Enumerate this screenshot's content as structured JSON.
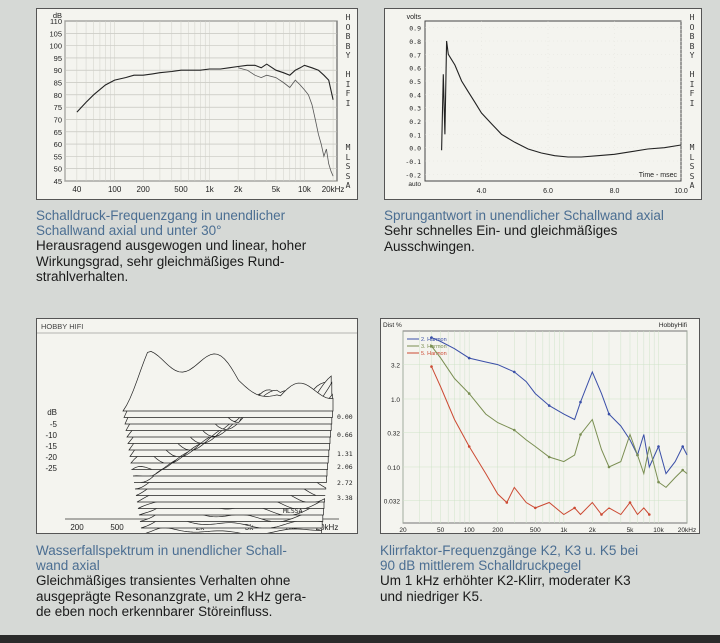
{
  "panels": [
    {
      "title": "Schalldruck-Frequenzgang in unendlicher\nSchallwand axial und unter 30°",
      "body": "Herausragend ausgewogen und linear, hoher\nWirkungsgrad, sehr gleichmäßiges Rund-\nstrahlverhalten.",
      "chart_data": {
        "type": "line",
        "y_unit": "dB",
        "y_ticks": [
          "110",
          "105",
          "100",
          "95",
          "90",
          "85",
          "80",
          "75",
          "70",
          "65",
          "60",
          "55",
          "50",
          "45"
        ],
        "x_ticks": [
          "40",
          "100",
          "200",
          "500",
          "1k",
          "2k",
          "5k",
          "10k",
          "20kHz"
        ],
        "vertical_label": [
          "H",
          "O",
          "B",
          "B",
          "Y",
          "",
          "H",
          "I",
          "F",
          "I"
        ],
        "vertical_label_bottom": [
          "M",
          "L",
          "S",
          "S",
          "A"
        ],
        "ylim": [
          45,
          110
        ],
        "series": [
          {
            "x": [
              40,
              50,
              60,
              80,
              100,
              130,
              160,
              200,
              250,
              300,
              400,
              500,
              600,
              800,
              1000,
              1300,
              1600,
              2000,
              2500,
              3000,
              3500,
              4000,
              5000,
              6000,
              7000,
              8000,
              9000,
              10000,
              12000,
              14000,
              16000,
              18000,
              20000
            ],
            "y": [
              73,
              77,
              80,
              84,
              86,
              87,
              88,
              88,
              88.5,
              89,
              89.5,
              90,
              90,
              90,
              90.5,
              90.5,
              91,
              91.5,
              92,
              92,
              91,
              92.5,
              90,
              89,
              88,
              90,
              91,
              92,
              91,
              90,
              88,
              86,
              78
            ]
          },
          {
            "x": [
              2000,
              2500,
              3000,
              3500,
              4000,
              5000,
              6000,
              7000,
              8000,
              9000,
              10000,
              11000,
              12000,
              13000,
              14000,
              15000,
              16000,
              17000,
              18000,
              19000,
              20000
            ],
            "y": [
              91,
              90,
              88,
              87,
              88,
              87,
              85,
              83,
              86,
              84,
              82,
              80,
              76,
              70,
              64,
              60,
              55,
              58,
              52,
              49,
              47
            ]
          }
        ]
      }
    },
    {
      "title": "Sprungantwort in unendlicher Schallwand axial",
      "body": "Sehr schnelles Ein- und gleichmäßiges\nAusschwingen.",
      "chart_data": {
        "type": "line",
        "y_unit": "volts",
        "y_ticks": [
          "0.9",
          "0.8",
          "0.7",
          "0.6",
          "0.5",
          "0.4",
          "0.3",
          "0.2",
          "0.1",
          "0.0",
          "-0.1",
          "-0.2"
        ],
        "y_bottom_label": "auto",
        "x_ticks": [
          "4.0",
          "6.0",
          "8.0",
          "10.0"
        ],
        "x_label": "Time - msec",
        "vertical_label": [
          "H",
          "O",
          "B",
          "B",
          "Y",
          "",
          "H",
          "I",
          "F",
          "I"
        ],
        "vertical_label_bottom": [
          "M",
          "L",
          "S",
          "S",
          "A"
        ],
        "xlim": [
          2.3,
          10.0
        ],
        "ylim": [
          -0.25,
          0.95
        ],
        "series": [
          {
            "x": [
              2.8,
              2.85,
              2.9,
              2.95,
              3.0,
              3.2,
              3.4,
              3.6,
              3.8,
              4.0,
              4.3,
              4.6,
              5.0,
              5.4,
              5.8,
              6.2,
              6.6,
              7.0,
              7.5,
              8.0,
              8.5,
              9.0,
              9.5,
              10.0
            ],
            "y": [
              -0.02,
              0.55,
              0.1,
              0.8,
              0.7,
              0.62,
              0.5,
              0.42,
              0.34,
              0.26,
              0.18,
              0.1,
              0.04,
              -0.01,
              -0.04,
              -0.06,
              -0.07,
              -0.07,
              -0.06,
              -0.05,
              -0.03,
              -0.01,
              0.0,
              0.02
            ]
          }
        ]
      }
    },
    {
      "title": "Wasserfallspektrum in unendlicher Schall-\nwand axial",
      "body": "Gleichmäßiges transientes Verhalten ohne\nausgeprägte Resonanzgrate, um 2 kHz gera-\nde eben noch erkennbarer Störeinfluss.",
      "chart_data": {
        "type": "area",
        "header": "HOBBY HIFI",
        "y_unit": "dB",
        "y_ticks": [
          "-5",
          "-10",
          "-15",
          "-20",
          "-25"
        ],
        "x_ticks": [
          "200",
          "500",
          "1k",
          "2k",
          "5k",
          "10k",
          "20kHz"
        ],
        "time_ticks": [
          "0.00",
          "0.66",
          "1.31",
          "2.06",
          "2.72",
          "3.38 msec"
        ],
        "brand": "MLSSA",
        "slices": 24
      }
    },
    {
      "title": "Klirrfaktor-Frequenzgänge K2, K3 u. K5 bei\n90 dB mittlerem Schalldruckpegel",
      "body": "Um 1 kHz erhöhter K2-Klirr, moderater K3\nund niedriger K5.",
      "chart_data": {
        "type": "line",
        "y_unit": "Dist %",
        "header": "HobbyHifi",
        "y_ticks": [
          "3.2",
          "1.0",
          "0.32",
          "0.10",
          "0.032"
        ],
        "x_ticks": [
          "20",
          "50",
          "100",
          "200",
          "500",
          "1k",
          "2k",
          "5k",
          "10k",
          "20kHz"
        ],
        "legend": [
          "2. Harmon",
          "3. Harmon",
          "5. Harmon"
        ],
        "colors": {
          "k2": "#3a4fa8",
          "k3": "#7a8e52",
          "k5": "#cc4a33"
        },
        "series": [
          {
            "name": "2. Harmon",
            "x": [
              40,
              50,
              70,
              100,
              150,
              200,
              300,
              400,
              500,
              700,
              1000,
              1300,
              1500,
              2000,
              2500,
              3000,
              4000,
              5000,
              6000,
              7000,
              8000,
              10000,
              12000,
              15000,
              18000,
              20000
            ],
            "y": [
              8,
              7,
              5.5,
              4,
              3.5,
              3.2,
              2.5,
              1.8,
              1.2,
              0.8,
              0.6,
              0.5,
              0.9,
              2.5,
              1.2,
              0.6,
              0.4,
              0.25,
              0.15,
              0.3,
              0.1,
              0.2,
              0.08,
              0.12,
              0.2,
              0.15
            ]
          },
          {
            "name": "3. Harmon",
            "x": [
              40,
              50,
              70,
              100,
              150,
              200,
              300,
              400,
              500,
              700,
              1000,
              1300,
              1500,
              2000,
              2500,
              3000,
              4000,
              5000,
              6000,
              7000,
              8000,
              10000,
              12000,
              15000,
              18000,
              20000
            ],
            "y": [
              6,
              4,
              2,
              1.2,
              0.6,
              0.45,
              0.35,
              0.25,
              0.2,
              0.14,
              0.12,
              0.15,
              0.3,
              0.5,
              0.18,
              0.1,
              0.12,
              0.3,
              0.15,
              0.08,
              0.2,
              0.06,
              0.05,
              0.07,
              0.09,
              0.08
            ]
          },
          {
            "name": "5. Harmon",
            "x": [
              40,
              50,
              70,
              100,
              150,
              200,
              250,
              300,
              400,
              500,
              700,
              1000,
              1300,
              1500,
              2000,
              2500,
              3000,
              4000,
              5000,
              6000,
              7000,
              8000
            ],
            "y": [
              3,
              1.5,
              0.5,
              0.2,
              0.08,
              0.04,
              0.03,
              0.05,
              0.03,
              0.025,
              0.03,
              0.02,
              0.025,
              0.02,
              0.03,
              0.02,
              0.025,
              0.02,
              0.03,
              0.02,
              0.025,
              0.02
            ]
          }
        ]
      }
    }
  ]
}
